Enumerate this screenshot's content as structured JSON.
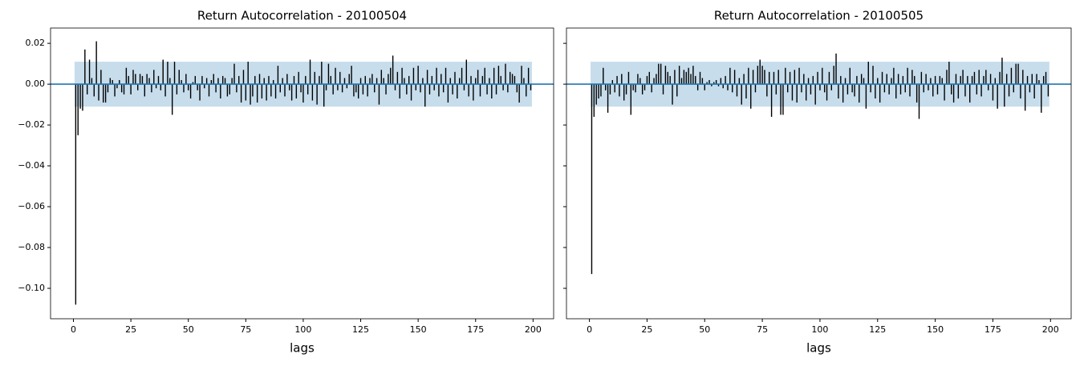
{
  "chart_data": [
    {
      "type": "stem",
      "title": "Return Autocorrelation - 20100504",
      "x_label": "lags",
      "color": "#000000",
      "band_color": "#1f77b4",
      "zero_line_color": "#1f77b4",
      "confint": 0.011,
      "y_tick_labels": true,
      "xlim": [
        -9.95,
        208.95
      ],
      "xticks": [
        0,
        25,
        50,
        75,
        100,
        125,
        150,
        175,
        200
      ],
      "ylim": [
        -0.1149,
        0.0275
      ],
      "yticks": [
        {
          "value": -0.1,
          "label": "−0.10"
        },
        {
          "value": -0.08,
          "label": "−0.08"
        },
        {
          "value": -0.06,
          "label": "−0.06"
        },
        {
          "value": -0.04,
          "label": "−0.04"
        },
        {
          "value": -0.02,
          "label": "−0.02"
        },
        {
          "value": 0,
          "label": "0.00"
        },
        {
          "value": 0.02,
          "label": "0.02"
        }
      ],
      "x": [
        1,
        2,
        3,
        4,
        5,
        6,
        7,
        8,
        9,
        10,
        11,
        12,
        13,
        14,
        15,
        16,
        17,
        18,
        19,
        20,
        21,
        22,
        23,
        24,
        25,
        26,
        27,
        28,
        29,
        30,
        31,
        32,
        33,
        34,
        35,
        36,
        37,
        38,
        39,
        40,
        41,
        42,
        43,
        44,
        45,
        46,
        47,
        48,
        49,
        50,
        51,
        52,
        53,
        54,
        55,
        56,
        57,
        58,
        59,
        60,
        61,
        62,
        63,
        64,
        65,
        66,
        67,
        68,
        69,
        70,
        71,
        72,
        73,
        74,
        75,
        76,
        77,
        78,
        79,
        80,
        81,
        82,
        83,
        84,
        85,
        86,
        87,
        88,
        89,
        90,
        91,
        92,
        93,
        94,
        95,
        96,
        97,
        98,
        99,
        100,
        101,
        102,
        103,
        104,
        105,
        106,
        107,
        108,
        109,
        110,
        111,
        112,
        113,
        114,
        115,
        116,
        117,
        118,
        119,
        120,
        121,
        122,
        123,
        124,
        125,
        126,
        127,
        128,
        129,
        130,
        131,
        132,
        133,
        134,
        135,
        136,
        137,
        138,
        139,
        140,
        141,
        142,
        143,
        144,
        145,
        146,
        147,
        148,
        149,
        150,
        151,
        152,
        153,
        154,
        155,
        156,
        157,
        158,
        159,
        160,
        161,
        162,
        163,
        164,
        165,
        166,
        167,
        168,
        169,
        170,
        171,
        172,
        173,
        174,
        175,
        176,
        177,
        178,
        179,
        180,
        181,
        182,
        183,
        184,
        185,
        186,
        187,
        188,
        189,
        190,
        191,
        192,
        193,
        194,
        195,
        196,
        197,
        198,
        199
      ],
      "values": [
        -0.108,
        -0.025,
        -0.012,
        -0.013,
        0.017,
        -0.005,
        0.012,
        0.003,
        -0.006,
        0.021,
        -0.008,
        0.007,
        -0.009,
        -0.009,
        -0.004,
        0.003,
        0.002,
        -0.006,
        -0.002,
        0.002,
        -0.004,
        -0.005,
        0.008,
        0.004,
        -0.005,
        0.007,
        0.005,
        -0.003,
        0.005,
        0.004,
        -0.006,
        0.005,
        0.003,
        -0.004,
        0.007,
        -0.002,
        0.004,
        -0.003,
        0.012,
        -0.006,
        0.011,
        0.003,
        -0.015,
        0.011,
        -0.005,
        0.007,
        0.002,
        -0.004,
        0.005,
        -0.003,
        -0.007,
        0.001,
        0.004,
        -0.003,
        -0.008,
        0.004,
        -0.002,
        0.003,
        -0.006,
        0.002,
        0.005,
        -0.004,
        0.003,
        -0.007,
        0.004,
        0.003,
        -0.006,
        -0.005,
        0.003,
        0.01,
        -0.004,
        0.004,
        -0.009,
        0.007,
        -0.008,
        0.011,
        -0.01,
        -0.006,
        0.004,
        -0.009,
        0.005,
        -0.007,
        0.003,
        -0.008,
        0.004,
        -0.006,
        0.002,
        -0.007,
        0.009,
        -0.004,
        0.003,
        -0.006,
        0.005,
        -0.003,
        -0.008,
        0.004,
        -0.007,
        0.006,
        -0.004,
        -0.009,
        0.004,
        -0.005,
        0.012,
        -0.008,
        0.006,
        -0.01,
        0.004,
        0.011,
        -0.011,
        -0.003,
        0.01,
        0.004,
        -0.005,
        0.008,
        -0.003,
        0.006,
        -0.004,
        0.003,
        -0.002,
        0.005,
        0.009,
        -0.006,
        -0.004,
        -0.007,
        0.003,
        -0.005,
        0.004,
        -0.006,
        0.003,
        0.005,
        -0.004,
        0.003,
        -0.01,
        0.007,
        0.003,
        -0.005,
        0.005,
        0.008,
        0.014,
        -0.003,
        0.006,
        -0.007,
        0.008,
        0.003,
        -0.005,
        0.004,
        -0.008,
        0.008,
        -0.003,
        0.009,
        -0.004,
        0.003,
        -0.011,
        0.007,
        -0.005,
        0.004,
        -0.003,
        0.008,
        -0.006,
        0.005,
        -0.004,
        0.008,
        -0.009,
        0.003,
        -0.005,
        0.006,
        -0.007,
        0.003,
        0.008,
        -0.003,
        0.012,
        -0.006,
        0.004,
        -0.008,
        0.003,
        0.007,
        -0.006,
        0.004,
        0.008,
        -0.005,
        0.003,
        -0.007,
        0.008,
        -0.005,
        0.009,
        0.004,
        -0.003,
        0.01,
        -0.004,
        0.006,
        0.005,
        0.004,
        -0.004,
        -0.009,
        0.009,
        0.003,
        -0.006,
        0.008,
        -0.003
      ]
    },
    {
      "type": "stem",
      "title": "Return Autocorrelation - 20100505",
      "x_label": "lags",
      "color": "#000000",
      "band_color": "#1f77b4",
      "zero_line_color": "#1f77b4",
      "confint": 0.011,
      "y_tick_labels": false,
      "xlim": [
        -9.95,
        208.95
      ],
      "xticks": [
        0,
        25,
        50,
        75,
        100,
        125,
        150,
        175,
        200
      ],
      "ylim": [
        -0.1149,
        0.0275
      ],
      "yticks": [
        -0.1,
        -0.08,
        -0.06,
        -0.04,
        -0.02,
        0,
        0.02
      ],
      "x": [
        1,
        2,
        3,
        4,
        5,
        6,
        7,
        8,
        9,
        10,
        11,
        12,
        13,
        14,
        15,
        16,
        17,
        18,
        19,
        20,
        21,
        22,
        23,
        24,
        25,
        26,
        27,
        28,
        29,
        30,
        31,
        32,
        33,
        34,
        35,
        36,
        37,
        38,
        39,
        40,
        41,
        42,
        43,
        44,
        45,
        46,
        47,
        48,
        49,
        50,
        51,
        52,
        53,
        54,
        55,
        56,
        57,
        58,
        59,
        60,
        61,
        62,
        63,
        64,
        65,
        66,
        67,
        68,
        69,
        70,
        71,
        72,
        73,
        74,
        75,
        76,
        77,
        78,
        79,
        80,
        81,
        82,
        83,
        84,
        85,
        86,
        87,
        88,
        89,
        90,
        91,
        92,
        93,
        94,
        95,
        96,
        97,
        98,
        99,
        100,
        101,
        102,
        103,
        104,
        105,
        106,
        107,
        108,
        109,
        110,
        111,
        112,
        113,
        114,
        115,
        116,
        117,
        118,
        119,
        120,
        121,
        122,
        123,
        124,
        125,
        126,
        127,
        128,
        129,
        130,
        131,
        132,
        133,
        134,
        135,
        136,
        137,
        138,
        139,
        140,
        141,
        142,
        143,
        144,
        145,
        146,
        147,
        148,
        149,
        150,
        151,
        152,
        153,
        154,
        155,
        156,
        157,
        158,
        159,
        160,
        161,
        162,
        163,
        164,
        165,
        166,
        167,
        168,
        169,
        170,
        171,
        172,
        173,
        174,
        175,
        176,
        177,
        178,
        179,
        180,
        181,
        182,
        183,
        184,
        185,
        186,
        187,
        188,
        189,
        190,
        191,
        192,
        193,
        194,
        195,
        196,
        197,
        198,
        199
      ],
      "values": [
        -0.093,
        -0.016,
        -0.01,
        -0.007,
        -0.006,
        0.008,
        -0.003,
        -0.014,
        -0.005,
        0.002,
        -0.004,
        0.004,
        -0.006,
        0.005,
        -0.008,
        -0.005,
        0.006,
        -0.015,
        -0.003,
        -0.004,
        0.005,
        0.003,
        -0.005,
        -0.003,
        0.004,
        0.006,
        -0.004,
        0.003,
        0.005,
        0.01,
        0.01,
        -0.005,
        0.009,
        0.006,
        0.004,
        -0.01,
        0.007,
        -0.006,
        0.009,
        0.003,
        0.007,
        0.006,
        0.008,
        0.005,
        0.009,
        0.004,
        -0.003,
        0.006,
        0.003,
        -0.003,
        0.001,
        0.002,
        -0.001,
        0.001,
        0.002,
        -0.001,
        0.003,
        -0.002,
        0.004,
        -0.003,
        0.008,
        -0.004,
        0.007,
        -0.006,
        0.003,
        -0.01,
        0.005,
        -0.007,
        0.008,
        -0.012,
        0.007,
        -0.004,
        0.009,
        0.012,
        0.009,
        0.007,
        -0.006,
        0.006,
        -0.016,
        0.006,
        -0.005,
        0.007,
        -0.015,
        -0.015,
        0.008,
        -0.004,
        0.006,
        -0.008,
        0.007,
        -0.009,
        0.008,
        -0.004,
        0.005,
        -0.008,
        0.003,
        -0.005,
        0.004,
        -0.01,
        0.006,
        -0.003,
        0.008,
        -0.004,
        -0.008,
        0.006,
        -0.003,
        0.009,
        0.015,
        -0.007,
        0.004,
        -0.009,
        0.003,
        -0.005,
        0.008,
        -0.004,
        -0.006,
        0.004,
        -0.009,
        0.005,
        0.003,
        -0.012,
        0.011,
        -0.004,
        0.009,
        -0.007,
        0.003,
        -0.009,
        0.006,
        -0.004,
        0.005,
        -0.005,
        0.003,
        0.008,
        -0.007,
        0.005,
        -0.005,
        0.004,
        -0.004,
        0.008,
        -0.006,
        0.007,
        0.004,
        -0.009,
        -0.017,
        0.006,
        -0.004,
        0.005,
        -0.003,
        0.003,
        -0.006,
        0.004,
        -0.005,
        0.004,
        0.003,
        -0.008,
        0.007,
        0.011,
        -0.005,
        -0.009,
        0.005,
        -0.007,
        0.004,
        0.007,
        -0.006,
        0.004,
        -0.009,
        0.004,
        0.006,
        -0.005,
        0.007,
        -0.006,
        0.004,
        0.007,
        -0.003,
        0.005,
        -0.008,
        0.003,
        -0.012,
        0.006,
        0.013,
        -0.011,
        0.005,
        -0.006,
        0.008,
        -0.004,
        0.01,
        0.01,
        -0.007,
        0.007,
        -0.013,
        0.004,
        -0.004,
        0.005,
        -0.007,
        0.005,
        0.002,
        -0.014,
        0.004,
        0.006,
        -0.006
      ]
    }
  ]
}
